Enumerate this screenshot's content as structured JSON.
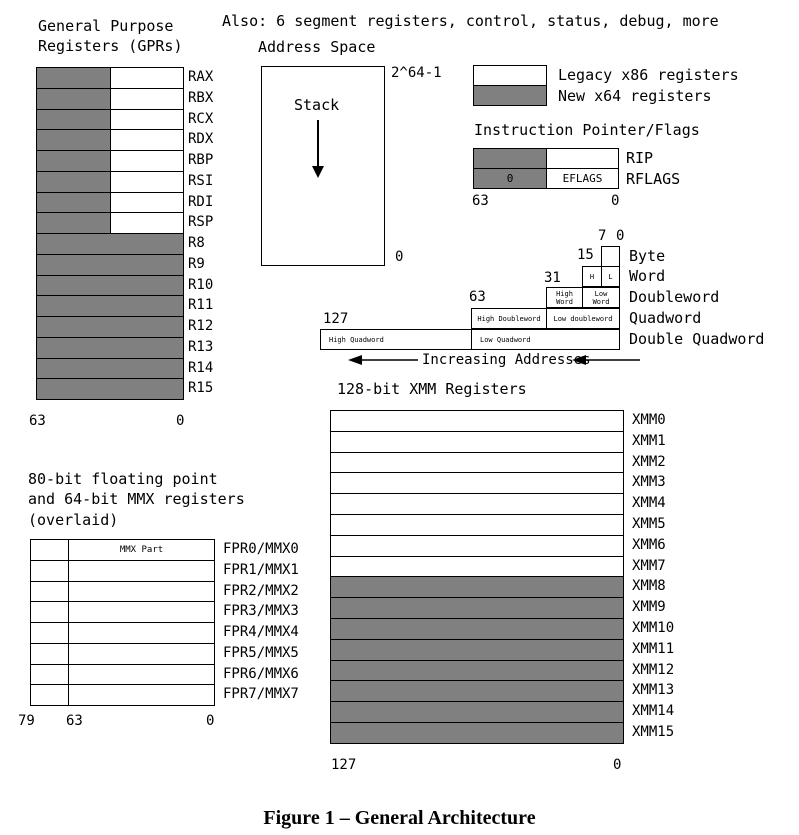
{
  "top_note": "Also: 6 segment registers, control, status, debug, more",
  "gpr": {
    "title_line1": "General Purpose",
    "title_line2": "Registers (GPRs)",
    "registers": [
      "RAX",
      "RBX",
      "RCX",
      "RDX",
      "RBP",
      "RSI",
      "RDI",
      "RSP",
      "R8",
      "R9",
      "R10",
      "R11",
      "R12",
      "R13",
      "R14",
      "R15"
    ],
    "legacy_split_count": 8,
    "bit_high": "63",
    "bit_low": "0"
  },
  "address_space": {
    "title": "Address Space",
    "top_label": "2^64-1",
    "bottom_label": "0",
    "stack_label": "Stack"
  },
  "legend": {
    "legacy": "Legacy x86 registers",
    "new": "New x64 registers"
  },
  "ip_flags": {
    "title": "Instruction Pointer/Flags",
    "rip_label": "RIP",
    "rflags_label": "RFLAGS",
    "rflags_zero": "0",
    "eflags": "EFLAGS",
    "bit_high": "63",
    "bit_low": "0"
  },
  "data_sizes": {
    "bit7": "7",
    "bit0": "0",
    "bit15": "15",
    "bit31": "31",
    "bit63": "63",
    "bit127": "127",
    "byte": "Byte",
    "word": "Word",
    "doubleword": "Doubleword",
    "quadword": "Quadword",
    "double_quadword": "Double Quadword",
    "h": "H",
    "l": "L",
    "high_word_1": "High",
    "high_word_2": "Word",
    "low_word_1": "Low",
    "low_word_2": "Word",
    "high_doubleword": "High Doubleword",
    "low_doubleword": "Low doubleword",
    "high_quadword": "High Quadword",
    "low_quadword": "Low Quadword",
    "increasing_addresses": "Increasing Addresses"
  },
  "xmm": {
    "title": "128-bit XMM Registers",
    "registers": [
      "XMM0",
      "XMM1",
      "XMM2",
      "XMM3",
      "XMM4",
      "XMM5",
      "XMM6",
      "XMM7",
      "XMM8",
      "XMM9",
      "XMM10",
      "XMM11",
      "XMM12",
      "XMM13",
      "XMM14",
      "XMM15"
    ],
    "legacy_count": 8,
    "bit_high": "127",
    "bit_low": "0"
  },
  "fpr": {
    "title_line1": "80-bit floating point",
    "title_line2": "and 64-bit MMX registers",
    "title_line3": "(overlaid)",
    "mmx_part": "MMX Part",
    "registers": [
      "FPR0/MMX0",
      "FPR1/MMX1",
      "FPR2/MMX2",
      "FPR3/MMX3",
      "FPR4/MMX4",
      "FPR5/MMX5",
      "FPR6/MMX6",
      "FPR7/MMX7"
    ],
    "bit79": "79",
    "bit63": "63",
    "bit0": "0"
  },
  "caption": "Figure 1 – General Architecture",
  "colors": {
    "new_register": "#808080",
    "legacy_register": "#ffffff"
  }
}
